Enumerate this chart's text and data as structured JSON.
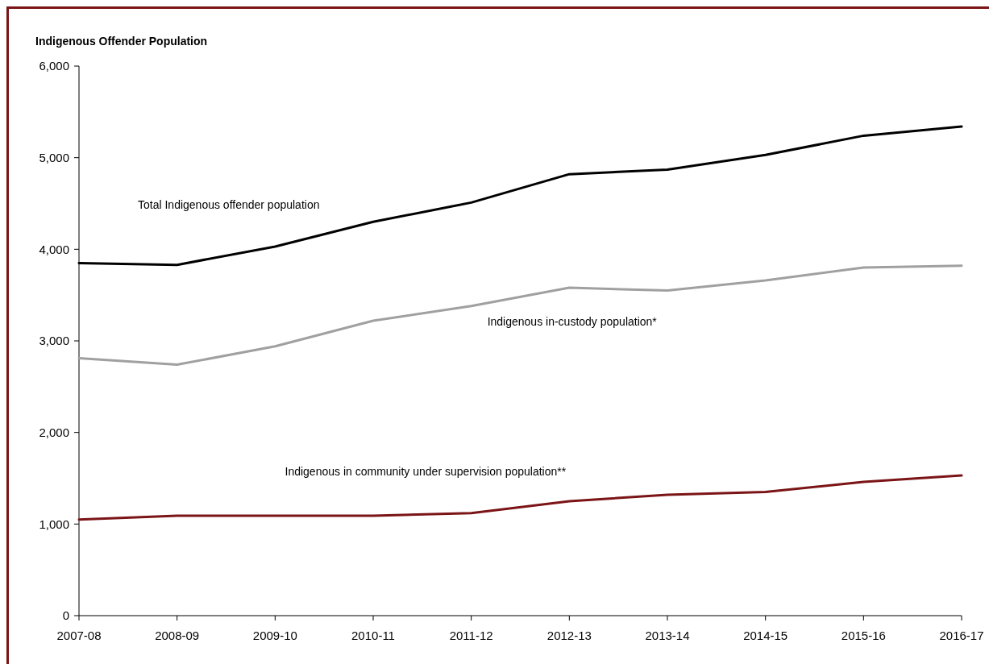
{
  "chart_data": {
    "type": "line",
    "title": "Indigenous Offender Population",
    "categories": [
      "2007-08",
      "2008-09",
      "2009-10",
      "2010-11",
      "2011-12",
      "2012-13",
      "2013-14",
      "2014-15",
      "2015-16",
      "2016-17"
    ],
    "series": [
      {
        "name": "Total Indigenous offender population",
        "color": "#000000",
        "values": [
          3850,
          3830,
          4030,
          4300,
          4510,
          4820,
          4870,
          5030,
          5240,
          5340
        ]
      },
      {
        "name": "Indigenous in-custody population*",
        "color": "#a0a0a0",
        "values": [
          2810,
          2740,
          2940,
          3220,
          3380,
          3580,
          3550,
          3660,
          3800,
          3820
        ]
      },
      {
        "name": "Indigenous in community under supervision population**",
        "color": "#7b1416",
        "values": [
          1050,
          1090,
          1090,
          1090,
          1120,
          1250,
          1320,
          1350,
          1460,
          1530
        ]
      }
    ],
    "ylim": [
      0,
      6000
    ],
    "yticks": [
      {
        "value": 0,
        "label": "0"
      },
      {
        "value": 1000,
        "label": "1,000"
      },
      {
        "value": 2000,
        "label": "2,000"
      },
      {
        "value": 3000,
        "label": "3,000"
      },
      {
        "value": 4000,
        "label": "4,000"
      },
      {
        "value": 5000,
        "label": "5,000"
      },
      {
        "value": 6000,
        "label": "6,000"
      }
    ],
    "grid": false,
    "marker": "none",
    "line_style": "solid"
  }
}
